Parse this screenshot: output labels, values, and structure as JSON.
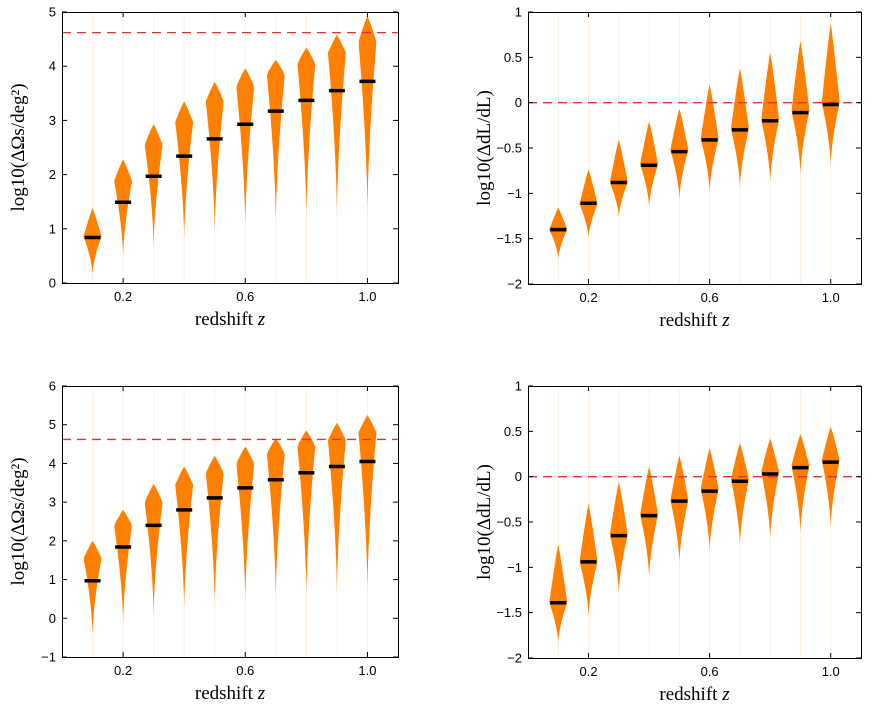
{
  "figure": {
    "colors": {
      "violin": "#ff8000",
      "median": "#000000",
      "reference_line": "#e83030",
      "axes": "#000000"
    }
  },
  "chart_data": [
    {
      "type": "violin",
      "panel": "top-left",
      "xlabel": "redshift z",
      "ylabel": "log10(ΔΩs/deg²)",
      "xlim": [
        0.0,
        1.1
      ],
      "ylim": [
        0,
        5
      ],
      "xticks": [
        0.2,
        0.6,
        1.0
      ],
      "xtick_labels": [
        "0.2",
        "0.6",
        "1.0"
      ],
      "yticks": [
        0,
        1,
        2,
        3,
        4,
        5
      ],
      "ytick_labels": [
        "0",
        "1",
        "2",
        "3",
        "4",
        "5"
      ],
      "reference_line": 4.62,
      "x": [
        0.1,
        0.2,
        0.3,
        0.4,
        0.5,
        0.6,
        0.7,
        0.8,
        0.9,
        1.0
      ],
      "median": [
        0.84,
        1.49,
        1.97,
        2.34,
        2.66,
        2.93,
        3.17,
        3.37,
        3.55,
        3.72
      ],
      "low": [
        0.15,
        0.47,
        0.65,
        0.79,
        0.91,
        1.01,
        1.1,
        1.18,
        1.24,
        1.3
      ],
      "high": [
        1.38,
        2.28,
        2.93,
        3.35,
        3.71,
        3.96,
        4.12,
        4.34,
        4.58,
        4.93
      ],
      "peak": [
        0.86,
        1.88,
        2.55,
        2.97,
        3.35,
        3.63,
        3.85,
        4.05,
        4.25,
        4.45
      ]
    },
    {
      "type": "violin",
      "panel": "top-right",
      "xlabel": "redshift z",
      "ylabel": "log10(ΔdL/dL)",
      "xlim": [
        0.0,
        1.1
      ],
      "ylim": [
        -2,
        1
      ],
      "xticks": [
        0.2,
        0.6,
        1.0
      ],
      "xtick_labels": [
        "0.2",
        "0.6",
        "1.0"
      ],
      "yticks": [
        -2,
        -1.5,
        -1,
        -0.5,
        0,
        0.5,
        1
      ],
      "ytick_labels": [
        "−2",
        "−1.5",
        "−1",
        "−0.5",
        "0",
        "0.5",
        "1"
      ],
      "reference_line": 0,
      "x": [
        0.1,
        0.2,
        0.3,
        0.4,
        0.5,
        0.6,
        0.7,
        0.8,
        0.9,
        1.0
      ],
      "median": [
        -1.4,
        -1.11,
        -0.88,
        -0.69,
        -0.54,
        -0.41,
        -0.3,
        -0.2,
        -0.11,
        -0.02
      ],
      "low": [
        -1.73,
        -1.5,
        -1.27,
        -1.16,
        -1.07,
        -0.99,
        -0.95,
        -0.89,
        -0.8,
        -0.7
      ],
      "high": [
        -1.16,
        -0.74,
        -0.41,
        -0.21,
        -0.07,
        0.2,
        0.38,
        0.55,
        0.68,
        0.87
      ],
      "peak": [
        -1.4,
        -1.12,
        -0.88,
        -0.68,
        -0.52,
        -0.4,
        -0.29,
        -0.19,
        -0.09,
        0.0
      ]
    },
    {
      "type": "violin",
      "panel": "bottom-left",
      "xlabel": "redshift z",
      "ylabel": "log10(ΔΩs/deg²)",
      "xlim": [
        0.0,
        1.1
      ],
      "ylim": [
        -1,
        6
      ],
      "xticks": [
        0.2,
        0.6,
        1.0
      ],
      "xtick_labels": [
        "0.2",
        "0.6",
        "1.0"
      ],
      "yticks": [
        -1,
        0,
        1,
        2,
        3,
        4,
        5,
        6
      ],
      "ytick_labels": [
        "−1",
        "0",
        "1",
        "2",
        "3",
        "4",
        "5",
        "6"
      ],
      "reference_line": 4.62,
      "x": [
        0.1,
        0.2,
        0.3,
        0.4,
        0.5,
        0.6,
        0.7,
        0.8,
        0.9,
        1.0
      ],
      "median": [
        0.97,
        1.84,
        2.4,
        2.8,
        3.11,
        3.37,
        3.58,
        3.76,
        3.92,
        4.05
      ],
      "low": [
        -0.45,
        -0.15,
        0.05,
        0.2,
        0.32,
        0.42,
        0.5,
        0.55,
        0.62,
        0.68
      ],
      "high": [
        2.0,
        2.8,
        3.47,
        3.92,
        4.2,
        4.43,
        4.65,
        4.85,
        5.05,
        5.25
      ],
      "peak": [
        1.55,
        2.4,
        3.0,
        3.45,
        3.75,
        4.0,
        4.25,
        4.45,
        4.6,
        4.8
      ]
    },
    {
      "type": "violin",
      "panel": "bottom-right",
      "xlabel": "redshift z",
      "ylabel": "log10(ΔdL/dL)",
      "xlim": [
        0.0,
        1.1
      ],
      "ylim": [
        -2,
        1
      ],
      "xticks": [
        0.2,
        0.6,
        1.0
      ],
      "xtick_labels": [
        "0.2",
        "0.6",
        "1.0"
      ],
      "yticks": [
        -2,
        -1.5,
        -1,
        -0.5,
        0,
        0.5,
        1
      ],
      "ytick_labels": [
        "−2",
        "−1.5",
        "−1",
        "−0.5",
        "0",
        "0.5",
        "1"
      ],
      "reference_line": 0,
      "x": [
        0.1,
        0.2,
        0.3,
        0.4,
        0.5,
        0.6,
        0.7,
        0.8,
        0.9,
        1.0
      ],
      "median": [
        -1.39,
        -0.94,
        -0.65,
        -0.43,
        -0.27,
        -0.16,
        -0.05,
        0.03,
        0.1,
        0.16
      ],
      "low": [
        -1.84,
        -1.55,
        -1.3,
        -1.12,
        -0.96,
        -0.83,
        -0.77,
        -0.7,
        -0.63,
        -0.57
      ],
      "high": [
        -0.75,
        -0.3,
        -0.06,
        0.11,
        0.23,
        0.31,
        0.37,
        0.42,
        0.47,
        0.55
      ],
      "peak": [
        -1.39,
        -0.94,
        -0.64,
        -0.42,
        -0.26,
        -0.14,
        -0.03,
        0.05,
        0.12,
        0.18
      ]
    }
  ]
}
